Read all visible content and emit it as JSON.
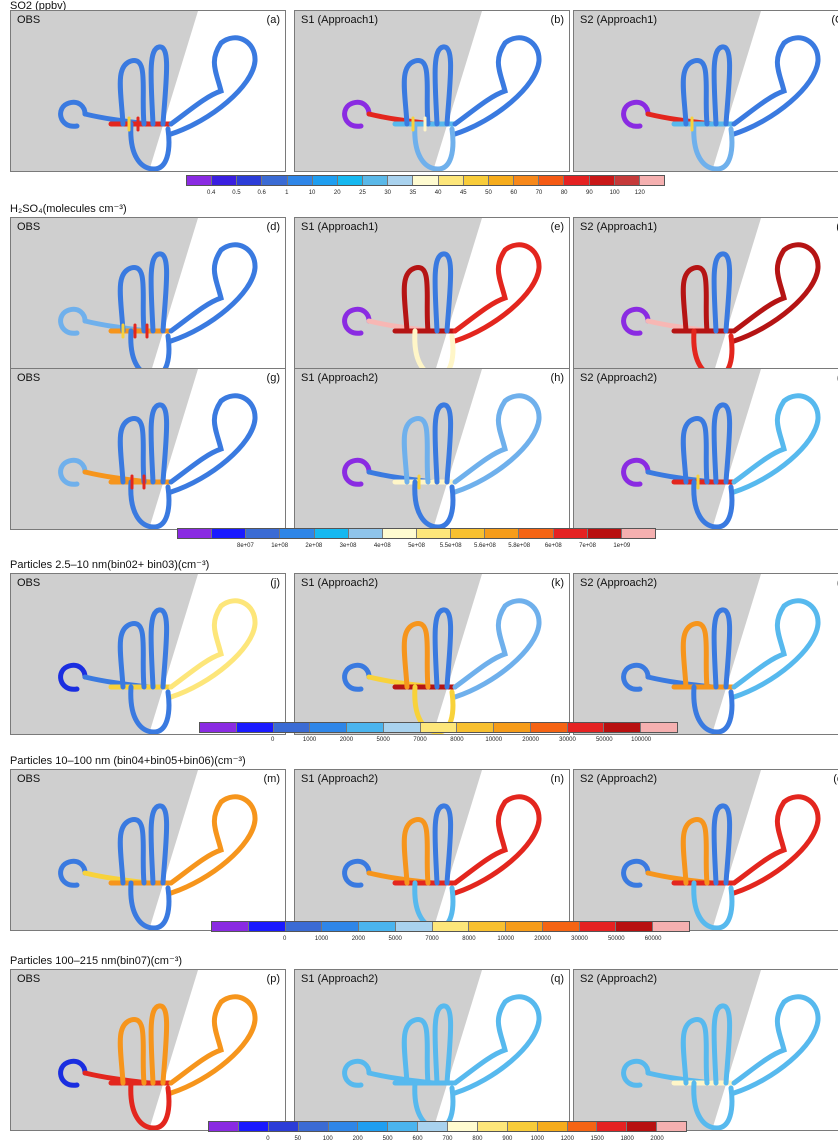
{
  "sections": [
    {
      "title": "SO2 (ppbv)",
      "rows": [
        [
          {
            "title": "OBS",
            "label": "(a)",
            "scheme": "obsSO2"
          },
          {
            "title": "S1 (Approach1)",
            "label": "(b)",
            "scheme": "s1SO2"
          },
          {
            "title": "S2 (Approach1)",
            "label": "(C",
            "scheme": "s2SO2"
          }
        ]
      ],
      "colorbar": {
        "ticks": [
          "0.4",
          "0.5",
          "0.6",
          "1",
          "10",
          "20",
          "25",
          "30",
          "35",
          "40",
          "45",
          "50",
          "60",
          "70",
          "80",
          "90",
          "100",
          "120"
        ],
        "colors": [
          "#8a2be2",
          "#3a1fe0",
          "#2c3dd8",
          "#3b6bd4",
          "#2f86e8",
          "#1f9ef0",
          "#16b8f0",
          "#5ab8e8",
          "#a9d2ee",
          "#fffbd0",
          "#fde67a",
          "#f8cc3a",
          "#f6ac1c",
          "#f7881a",
          "#f55a14",
          "#e52222",
          "#c91818",
          "#c53a3a",
          "#f5b0b0"
        ]
      }
    },
    {
      "title": "H₂SO₄(molecules cm⁻³)",
      "rows": [
        [
          {
            "title": "OBS",
            "label": "(d)",
            "scheme": "obsH1"
          },
          {
            "title": "S1 (Approach1)",
            "label": "(e)",
            "scheme": "s1H1"
          },
          {
            "title": "S2 (Approach1)",
            "label": "(f",
            "scheme": "s2H1"
          }
        ],
        [
          {
            "title": "OBS",
            "label": "(g)",
            "scheme": "obsH2"
          },
          {
            "title": "S1 (Approach2)",
            "label": "(h)",
            "scheme": "s1H2"
          },
          {
            "title": "S2 (Approach2)",
            "label": "(i",
            "scheme": "s2H2"
          }
        ]
      ],
      "colorbar": {
        "ticks": [
          "8e+07",
          "1e+08",
          "2e+08",
          "3e+08",
          "4e+08",
          "5e+08",
          "5.5e+08",
          "5.6e+08",
          "5.8e+08",
          "6e+08",
          "7e+08",
          "1e+09"
        ],
        "colors": [
          "#8a2be2",
          "#1a1aff",
          "#3b6bd4",
          "#2f86e8",
          "#16b8f0",
          "#8fc4ea",
          "#fffbd0",
          "#fde67a",
          "#f8c030",
          "#f69c1a",
          "#f56414",
          "#e52222",
          "#b81010",
          "#f5b0b0"
        ]
      }
    },
    {
      "title": "Particles 2.5–10 nm(bin02+ bin03)(cm⁻³)",
      "rows": [
        [
          {
            "title": "OBS",
            "label": "(j)",
            "scheme": "obsP1"
          },
          {
            "title": "S1 (Approach2)",
            "label": "(k)",
            "scheme": "s1P1"
          },
          {
            "title": "S2 (Approach2)",
            "label": "(l",
            "scheme": "s2P1"
          }
        ]
      ],
      "colorbar": {
        "ticks": [
          "0",
          "1000",
          "2000",
          "5000",
          "7000",
          "8000",
          "10000",
          "20000",
          "30000",
          "50000",
          "100000"
        ],
        "colors": [
          "#8a2be2",
          "#1a1aff",
          "#3b6bd4",
          "#2f86e8",
          "#4ab4ee",
          "#a9d2ee",
          "#fde67a",
          "#f8c030",
          "#f69c1a",
          "#f56414",
          "#e52222",
          "#b81010",
          "#f5b0b0"
        ]
      }
    },
    {
      "title": "Particles 10–100 nm (bin04+bin05+bin06)(cm⁻³)",
      "rows": [
        [
          {
            "title": "OBS",
            "label": "(m)",
            "scheme": "obsP2"
          },
          {
            "title": "S1 (Approach2)",
            "label": "(n)",
            "scheme": "s1P2"
          },
          {
            "title": "S2 (Approach2)",
            "label": "(o",
            "scheme": "s2P2"
          }
        ]
      ],
      "colorbar": {
        "ticks": [
          "0",
          "1000",
          "2000",
          "5000",
          "7000",
          "8000",
          "10000",
          "20000",
          "30000",
          "50000",
          "60000"
        ],
        "colors": [
          "#8a2be2",
          "#1a1aff",
          "#3b6bd4",
          "#2f86e8",
          "#4ab4ee",
          "#a9d2ee",
          "#fde67a",
          "#f8c030",
          "#f69c1a",
          "#f56414",
          "#e52222",
          "#b81010",
          "#f5b0b0"
        ]
      }
    },
    {
      "title": "Particles 100–215 nm(bin07)(cm⁻³)",
      "rows": [
        [
          {
            "title": "OBS",
            "label": "(p)",
            "scheme": "obsP3"
          },
          {
            "title": "S1 (Approach2)",
            "label": "(q)",
            "scheme": "s1P3"
          },
          {
            "title": "S2 (Approach2)",
            "label": "(",
            "scheme": "s2P3"
          }
        ]
      ],
      "colorbar": {
        "ticks": [
          "0",
          "50",
          "100",
          "200",
          "500",
          "600",
          "700",
          "800",
          "900",
          "1000",
          "1200",
          "1500",
          "1800",
          "2000"
        ],
        "colors": [
          "#8a2be2",
          "#1a1aff",
          "#2c3dd8",
          "#3b6bd4",
          "#2f86e8",
          "#1f9ef0",
          "#4ab4ee",
          "#a9d2ee",
          "#fffbd0",
          "#fde67a",
          "#f8cc3a",
          "#f6ac1c",
          "#f56414",
          "#e52222",
          "#b81010",
          "#f5b0b0"
        ]
      }
    }
  ],
  "chart_data": {
    "type": "heatmap",
    "description_basis": "flight-track maps colored by concentration",
    "panels": [
      "(a)",
      "(b)",
      "(C",
      "(d)",
      "(e)",
      "(f",
      "(g)",
      "(h)",
      "(i",
      "(j)",
      "(k)",
      "(l",
      "(m)",
      "(n)",
      "(o",
      "(p)",
      "(q)",
      "("
    ]
  }
}
